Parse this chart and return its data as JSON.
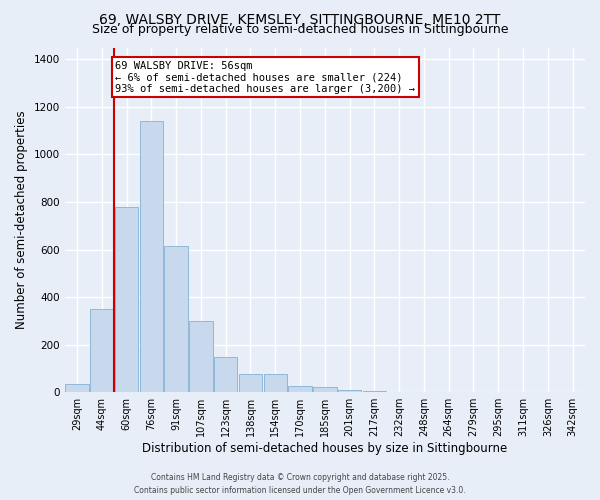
{
  "title": "69, WALSBY DRIVE, KEMSLEY, SITTINGBOURNE, ME10 2TT",
  "subtitle": "Size of property relative to semi-detached houses in Sittingbourne",
  "xlabel": "Distribution of semi-detached houses by size in Sittingbourne",
  "ylabel": "Number of semi-detached properties",
  "categories": [
    "29sqm",
    "44sqm",
    "60sqm",
    "76sqm",
    "91sqm",
    "107sqm",
    "123sqm",
    "138sqm",
    "154sqm",
    "170sqm",
    "185sqm",
    "201sqm",
    "217sqm",
    "232sqm",
    "248sqm",
    "264sqm",
    "279sqm",
    "295sqm",
    "311sqm",
    "326sqm",
    "342sqm"
  ],
  "values": [
    35,
    350,
    780,
    1140,
    615,
    300,
    148,
    75,
    75,
    28,
    20,
    10,
    5,
    2,
    1,
    1,
    0,
    0,
    0,
    0,
    0
  ],
  "bar_color": "#c9d9ed",
  "bar_edge_color": "#8fb8d8",
  "background_color": "#e8eef7",
  "grid_color": "#ffffff",
  "red_line_x": 1.5,
  "annotation_title": "69 WALSBY DRIVE: 56sqm",
  "annotation_line1": "← 6% of semi-detached houses are smaller (224)",
  "annotation_line2": "93% of semi-detached houses are larger (3,200) →",
  "annotation_box_color": "#ffffff",
  "annotation_border_color": "#cc0000",
  "ylim": [
    0,
    1450
  ],
  "yticks": [
    0,
    200,
    400,
    600,
    800,
    1000,
    1200,
    1400
  ],
  "footer1": "Contains HM Land Registry data © Crown copyright and database right 2025.",
  "footer2": "Contains public sector information licensed under the Open Government Licence v3.0.",
  "title_fontsize": 10,
  "subtitle_fontsize": 9,
  "tick_fontsize": 7,
  "ylabel_fontsize": 8.5,
  "xlabel_fontsize": 8.5,
  "annotation_fontsize": 7.5,
  "footer_fontsize": 5.5
}
